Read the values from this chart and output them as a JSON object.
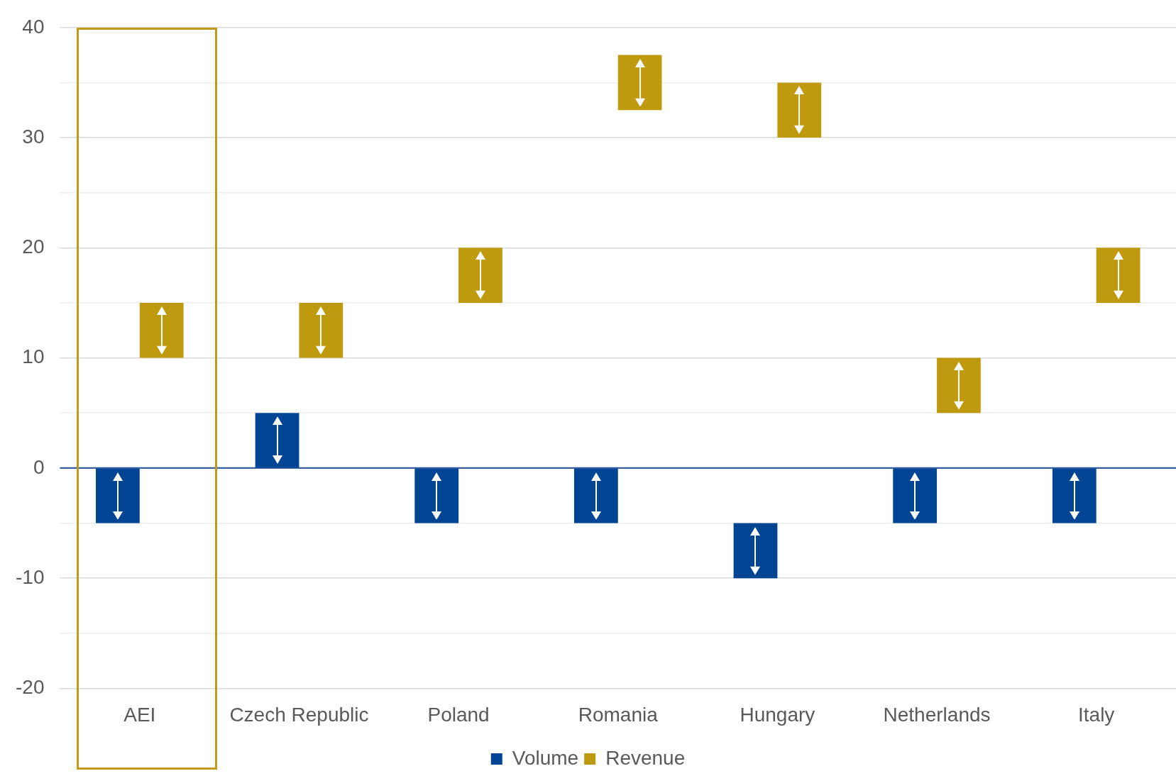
{
  "chart_data": {
    "type": "bar",
    "categories": [
      "AEI",
      "Czech Republic",
      "Poland",
      "Romania",
      "Hungary",
      "Netherlands",
      "Italy"
    ],
    "series": [
      {
        "name": "Volume",
        "color": "#004494",
        "base": [
          -5,
          0,
          -5,
          -5,
          -10,
          -5,
          -5
        ],
        "values": [
          5,
          5,
          5,
          5,
          5,
          5,
          5
        ]
      },
      {
        "name": "Revenue",
        "color": "#bf990e",
        "base": [
          10,
          10,
          15,
          32.5,
          30,
          5,
          15
        ],
        "values": [
          5,
          5,
          5,
          5,
          5,
          5,
          5
        ]
      }
    ],
    "ylim": [
      -20,
      40
    ],
    "yticks": [
      -20,
      {
        "value": -15,
        "label": null
      },
      -10,
      {
        "value": -5,
        "label": null
      },
      0,
      {
        "value": 5,
        "label": null
      },
      10,
      {
        "value": 15,
        "label": null
      },
      20,
      {
        "value": 25,
        "label": null
      },
      30,
      {
        "value": 35,
        "label": null
      },
      40
    ],
    "ref_lines": [
      {
        "axis": "y",
        "value": 0,
        "color": "#1f4e99"
      }
    ],
    "grid": "y",
    "legend": "bottom"
  }
}
